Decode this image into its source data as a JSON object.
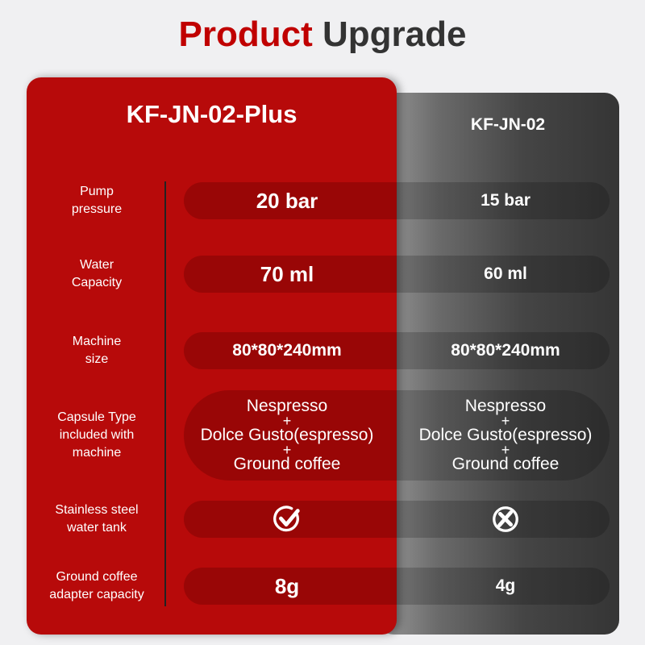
{
  "title": {
    "part1": "Product",
    "part2": "Upgrade",
    "accent_color": "#c00000"
  },
  "columns": {
    "plus": "KF-JN-02-Plus",
    "base": "KF-JN-02"
  },
  "colors": {
    "plus_card": "#b70a0a",
    "base_card": "#3a3a3a"
  },
  "rows": [
    {
      "label": "Pump\npressure",
      "plus": "20 bar",
      "base": "15 bar"
    },
    {
      "label": "Water\nCapacity",
      "plus": "70 ml",
      "base": "60 ml"
    },
    {
      "label": "Machine\nsize",
      "plus": "80*80*240mm",
      "base": "80*80*240mm"
    },
    {
      "label": "Capsule Type\nincluded with\nmachine",
      "plus": [
        "Nespresso",
        "+",
        "Dolce Gusto(espresso)",
        "+",
        "Ground coffee"
      ],
      "base": [
        "Nespresso",
        "+",
        "Dolce Gusto(espresso)",
        "+",
        "Ground coffee"
      ]
    },
    {
      "label": "Stainless steel\nwater tank",
      "plus_icon": "check-circle-icon",
      "base_icon": "x-circle-icon"
    },
    {
      "label": "Ground coffee\nadapter capacity",
      "plus": "8g",
      "base": "4g"
    }
  ]
}
